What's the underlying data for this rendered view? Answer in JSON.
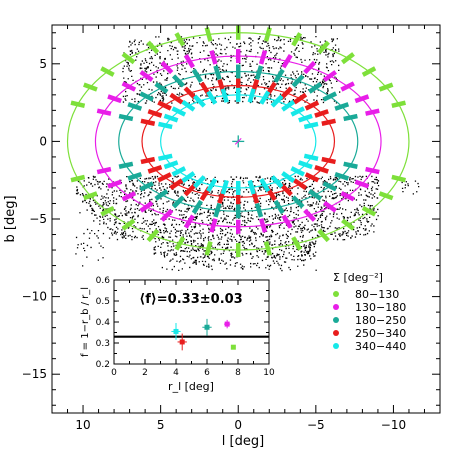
{
  "chart_data": [
    {
      "type": "scatter",
      "xlabel": "l  [deg]",
      "ylabel": "b  [deg]",
      "xlim": [
        12,
        -13
      ],
      "ylim": [
        -17.5,
        7.5
      ],
      "x_ticks": [
        10,
        5,
        0,
        -5,
        -10
      ],
      "y_ticks": [
        5,
        0,
        -5,
        -10,
        -15
      ],
      "grid": false,
      "legend_position": "right",
      "legend": {
        "title": "Σ  [deg⁻²]",
        "entries": [
          {
            "label": "80−130",
            "color": "#7ee03a"
          },
          {
            "label": "130−180",
            "color": "#e81ee8"
          },
          {
            "label": "180−250",
            "color": "#1aaa98"
          },
          {
            "label": "250−340",
            "color": "#e81d1d"
          },
          {
            "label": "340−440",
            "color": "#16e8e8"
          }
        ]
      },
      "ellipses": [
        {
          "level": "80−130",
          "color": "#7ee03a",
          "a": 11.0,
          "b": 7.0
        },
        {
          "level": "130−180",
          "color": "#e81ee8",
          "a": 9.2,
          "b": 5.5
        },
        {
          "level": "180−250",
          "color": "#1aaa98",
          "a": 7.7,
          "b": 4.5
        },
        {
          "level": "250−340",
          "color": "#e81d1d",
          "a": 6.2,
          "b": 3.6
        },
        {
          "level": "340−440",
          "color": "#16e8e8",
          "a": 5.0,
          "b": 3.0
        }
      ],
      "center_marker": {
        "l": 0,
        "b": 0
      }
    },
    {
      "type": "scatter",
      "title": "⟨f⟩=0.33±0.03",
      "xlabel": "r_l  [deg]",
      "ylabel": "f = 1−r_b / r_l",
      "xlim": [
        0,
        10
      ],
      "ylim": [
        0.2,
        0.6
      ],
      "x_ticks": [
        0,
        2,
        4,
        6,
        8,
        10
      ],
      "y_ticks": [
        0.2,
        0.3,
        0.4,
        0.5,
        0.6
      ],
      "mean_line": 0.33,
      "points": [
        {
          "x": 4.0,
          "y": 0.355,
          "xerr": 0.3,
          "yerr": 0.04,
          "color": "#16e8e8"
        },
        {
          "x": 4.4,
          "y": 0.305,
          "xerr": 0.3,
          "yerr": 0.04,
          "color": "#e81d1d"
        },
        {
          "x": 6.0,
          "y": 0.375,
          "xerr": 0.3,
          "yerr": 0.04,
          "color": "#1aaa98"
        },
        {
          "x": 7.3,
          "y": 0.39,
          "xerr": 0.2,
          "yerr": 0.02,
          "color": "#e81ee8"
        },
        {
          "x": 7.7,
          "y": 0.28,
          "xerr": 0.1,
          "yerr": 0.01,
          "color": "#7ee03a"
        }
      ]
    }
  ]
}
